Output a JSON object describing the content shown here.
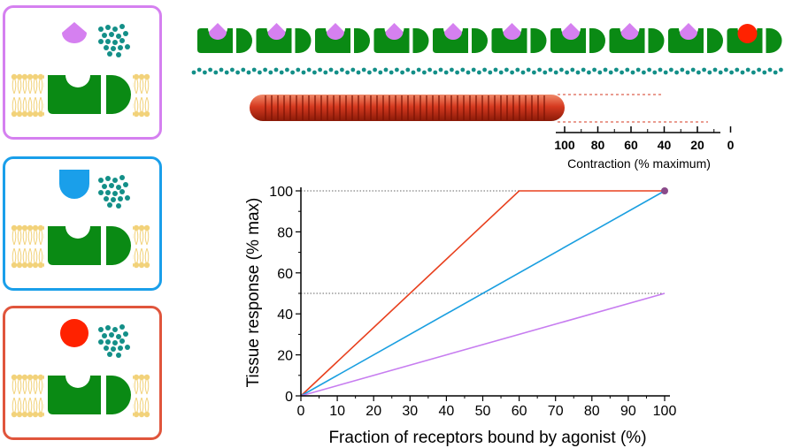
{
  "panels": [
    {
      "id": "partial-agonist",
      "border_color": "#d580f0",
      "ligand_shape": "diamond",
      "ligand_color": "#d580f0"
    },
    {
      "id": "antagonist",
      "border_color": "#1a9fea",
      "ligand_shape": "half-round",
      "ligand_color": "#1a9fea"
    },
    {
      "id": "full-agonist",
      "border_color": "#e0553c",
      "ligand_shape": "circle",
      "ligand_color": "#ff2200"
    }
  ],
  "colors": {
    "receptor": "#0a8a14",
    "membrane_lipid": "#f2d27a",
    "signal_dots": "#138f88",
    "muscle": "#d63a20"
  },
  "receptor_strip": {
    "count": 10,
    "ligands": [
      "diamond",
      "diamond",
      "diamond",
      "diamond",
      "diamond",
      "diamond",
      "diamond",
      "diamond",
      "diamond",
      "circle"
    ]
  },
  "contraction_scale": {
    "ticks": [
      "100",
      "80",
      "60",
      "40",
      "20",
      "0"
    ],
    "label": "Contraction (% maximum)"
  },
  "chart_data": {
    "type": "line",
    "xlabel": "Fraction of receptors bound by agonist (%)",
    "ylabel": "Tissue response (% max)",
    "xlim": [
      0,
      100
    ],
    "ylim": [
      0,
      100
    ],
    "xticks": [
      0,
      10,
      20,
      30,
      40,
      50,
      60,
      70,
      80,
      90,
      100
    ],
    "yticks": [
      0,
      20,
      40,
      60,
      80,
      100
    ],
    "grid": false,
    "reference_lines": [
      {
        "y": 100,
        "style": "dotted"
      },
      {
        "y": 50,
        "style": "dotted"
      }
    ],
    "series": [
      {
        "color": "#e8401e",
        "x": [
          0,
          60,
          100
        ],
        "y": [
          0,
          100,
          100
        ]
      },
      {
        "color": "#1a9fe0",
        "x": [
          0,
          100
        ],
        "y": [
          0,
          100
        ]
      },
      {
        "color": "#c77df0",
        "x": [
          0,
          100
        ],
        "y": [
          0,
          50
        ]
      }
    ],
    "marker": {
      "x": 100,
      "y": 100,
      "color": "#8a4a8a"
    }
  }
}
